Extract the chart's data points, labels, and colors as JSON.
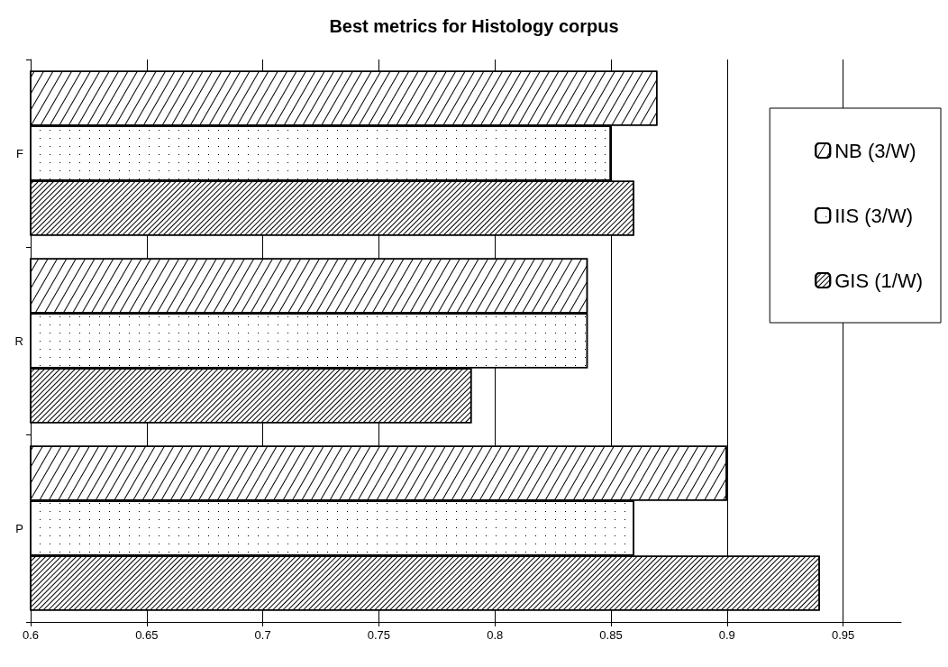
{
  "chart_data": {
    "type": "bar",
    "orientation": "horizontal",
    "title": "Best metrics for Histology corpus",
    "categories": [
      "F",
      "R",
      "P"
    ],
    "series": [
      {
        "name": "NB (3/W)",
        "color": "#ffffff",
        "values": [
          0.87,
          0.84,
          0.9
        ]
      },
      {
        "name": "IIS (3/W)",
        "color": "#ffffff",
        "values": [
          0.85,
          0.84,
          0.86
        ]
      },
      {
        "name": "GIS (1/W)",
        "color": "#ffffff",
        "values": [
          0.86,
          0.79,
          0.94
        ]
      }
    ],
    "xlim": [
      0.6,
      0.975
    ],
    "xticks": [
      0.6,
      0.65,
      0.7,
      0.75,
      0.8,
      0.85,
      0.9,
      0.95
    ],
    "grid": "x",
    "legend": "right"
  }
}
